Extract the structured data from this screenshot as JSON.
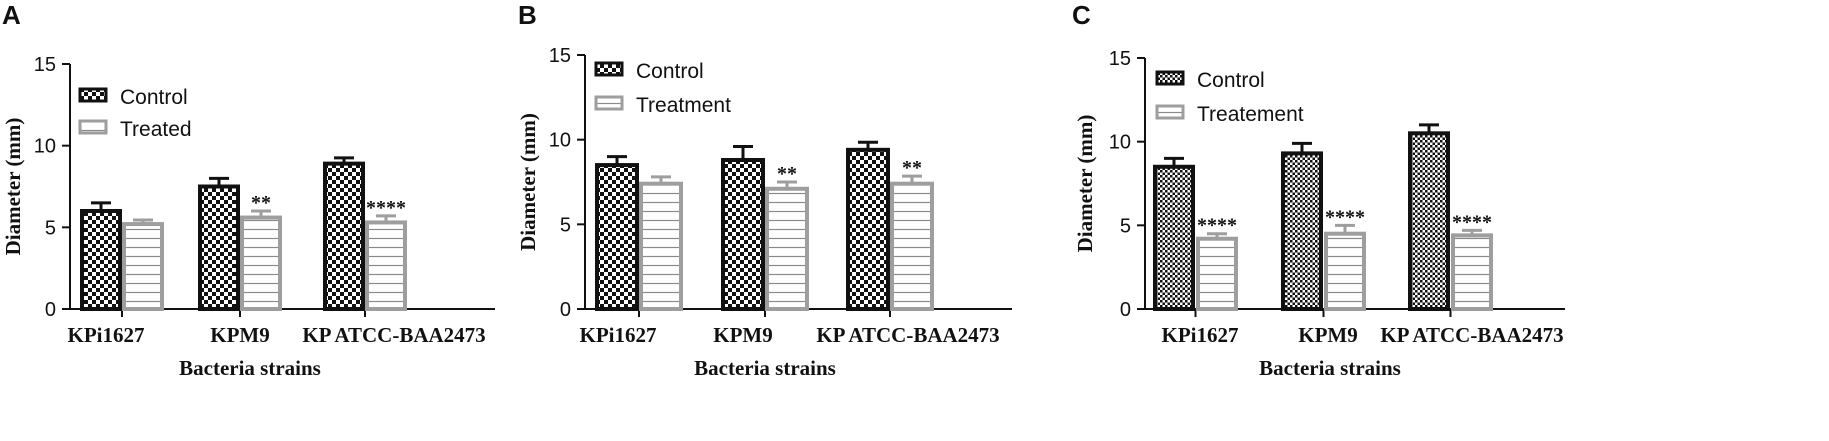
{
  "chart_data": [
    {
      "panel": "A",
      "type": "bar",
      "categories": [
        "KPi1627",
        "KPM9",
        "KP ATCC-BAA2473"
      ],
      "xlabel": "Bacteria strains",
      "ylabel": "Diameter (mm)",
      "ylim": [
        0,
        15
      ],
      "yticks": [
        "0",
        "5",
        "10",
        "15"
      ],
      "legend_position": "top-left",
      "series": [
        {
          "name": "Control",
          "pattern": "checker",
          "values": [
            6.0,
            7.5,
            8.9
          ],
          "errors": [
            0.5,
            0.5,
            0.35
          ],
          "labels": [
            "",
            "",
            ""
          ]
        },
        {
          "name": "Treated",
          "pattern": "lines",
          "values": [
            5.2,
            5.6,
            5.3
          ],
          "errors": [
            0.25,
            0.4,
            0.4
          ],
          "labels": [
            "",
            "**",
            "****"
          ]
        }
      ]
    },
    {
      "panel": "B",
      "type": "bar",
      "categories": [
        "KPi1627",
        "KPM9",
        "KP ATCC-BAA2473"
      ],
      "xlabel": "Bacteria strains",
      "ylabel": "Diameter (mm)",
      "ylim": [
        0,
        15
      ],
      "yticks": [
        "0",
        "5",
        "10",
        "15"
      ],
      "legend_position": "top-left",
      "series": [
        {
          "name": "Control",
          "pattern": "checker",
          "values": [
            8.5,
            8.8,
            9.4
          ],
          "errors": [
            0.5,
            0.8,
            0.45
          ],
          "labels": [
            "",
            "",
            ""
          ]
        },
        {
          "name": "Treatment",
          "pattern": "lines",
          "values": [
            7.4,
            7.1,
            7.4
          ],
          "errors": [
            0.4,
            0.4,
            0.45
          ],
          "labels": [
            "",
            "**",
            "**"
          ]
        }
      ]
    },
    {
      "panel": "C",
      "type": "bar",
      "categories": [
        "KPi1627",
        "KPM9",
        "KP ATCC-BAA2473"
      ],
      "xlabel": "Bacteria strains",
      "ylabel": "Diameter (mm)",
      "ylim": [
        0,
        15
      ],
      "yticks": [
        "0",
        "5",
        "10",
        "15"
      ],
      "legend_position": "top-left",
      "series": [
        {
          "name": "Control",
          "pattern": "checker",
          "values": [
            8.5,
            9.3,
            10.5
          ],
          "errors": [
            0.5,
            0.6,
            0.5
          ],
          "labels": [
            "",
            "",
            ""
          ]
        },
        {
          "name": "Treatement",
          "pattern": "lines",
          "values": [
            4.2,
            4.5,
            4.4
          ],
          "errors": [
            0.3,
            0.5,
            0.3
          ],
          "labels": [
            "****",
            "****",
            "****"
          ]
        }
      ]
    }
  ],
  "colors": {
    "control_stroke": "#111111",
    "treated_stroke": "#9e9e9e",
    "axis": "#111111"
  }
}
